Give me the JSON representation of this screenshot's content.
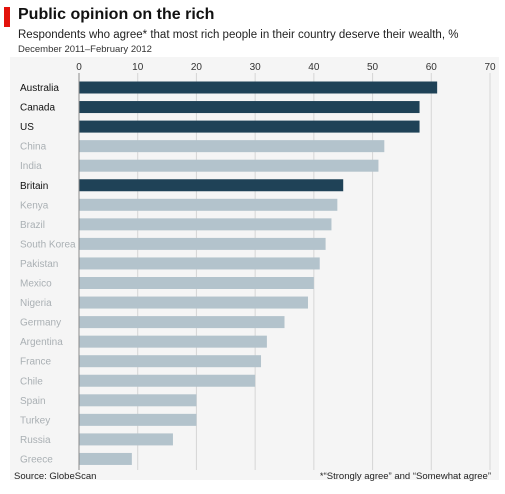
{
  "header": {
    "title": "Public opinion on the rich",
    "subtitle": "Respondents who agree* that most rich people in their country deserve their wealth, %",
    "period": "December 2011–February 2012"
  },
  "footer": {
    "source": "Source: GlobeScan",
    "footnote": "*“Strongly agree” and “Somewhat agree”"
  },
  "colors": {
    "highlight": "#1f4257",
    "default": "#b3c3cc",
    "accent": "#e3120b"
  },
  "chart_data": {
    "type": "bar",
    "orientation": "horizontal",
    "title": "Public opinion on the rich",
    "subtitle": "Respondents who agree* that most rich people in their country deserve their wealth, %",
    "xlim": [
      0,
      70
    ],
    "ticks": [
      0,
      10,
      20,
      30,
      40,
      50,
      60,
      70
    ],
    "grid": true,
    "categories": [
      "Australia",
      "Canada",
      "US",
      "China",
      "India",
      "Britain",
      "Kenya",
      "Brazil",
      "South Korea",
      "Pakistan",
      "Mexico",
      "Nigeria",
      "Germany",
      "Argentina",
      "France",
      "Chile",
      "Spain",
      "Turkey",
      "Russia",
      "Greece"
    ],
    "values": [
      61,
      58,
      58,
      52,
      51,
      45,
      44,
      43,
      42,
      41,
      40,
      39,
      35,
      32,
      31,
      30,
      20,
      20,
      16,
      9
    ],
    "highlighted": [
      "Australia",
      "Canada",
      "US",
      "Britain"
    ]
  }
}
